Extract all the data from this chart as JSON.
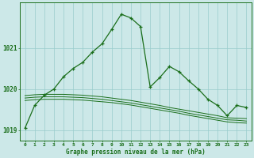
{
  "title": "Graphe pression niveau de la mer (hPa)",
  "background_color": "#cce8e8",
  "grid_color": "#99cccc",
  "line_color": "#1a6e1a",
  "xlim": [
    -0.5,
    23.5
  ],
  "ylim": [
    1018.75,
    1022.1
  ],
  "yticks": [
    1019,
    1020,
    1021
  ],
  "xticks": [
    0,
    1,
    2,
    3,
    4,
    5,
    6,
    7,
    8,
    9,
    10,
    11,
    12,
    13,
    14,
    15,
    16,
    17,
    18,
    19,
    20,
    21,
    22,
    23
  ],
  "main_x": [
    0,
    1,
    2,
    3,
    4,
    5,
    6,
    7,
    8,
    9,
    10,
    11,
    12,
    13,
    14,
    15,
    16,
    17,
    18,
    19,
    20,
    21,
    22,
    23
  ],
  "main_y": [
    1019.05,
    1019.6,
    1019.85,
    1020.0,
    1020.3,
    1020.5,
    1020.65,
    1020.9,
    1021.1,
    1021.45,
    1021.82,
    1021.73,
    1021.52,
    1020.05,
    1020.28,
    1020.55,
    1020.42,
    1020.2,
    1020.0,
    1019.75,
    1019.6,
    1019.35,
    1019.6,
    1019.55
  ],
  "line2_x": [
    0,
    1,
    2,
    3,
    4,
    5,
    6,
    7,
    8,
    9,
    10,
    11,
    12,
    13,
    14,
    15,
    16,
    17,
    18,
    19,
    20,
    21,
    22,
    23
  ],
  "line2_y": [
    1019.72,
    1019.74,
    1019.75,
    1019.75,
    1019.75,
    1019.74,
    1019.73,
    1019.71,
    1019.69,
    1019.67,
    1019.64,
    1019.61,
    1019.57,
    1019.53,
    1019.49,
    1019.45,
    1019.41,
    1019.36,
    1019.32,
    1019.28,
    1019.24,
    1019.2,
    1019.18,
    1019.17
  ],
  "line3_x": [
    0,
    1,
    2,
    3,
    4,
    5,
    6,
    7,
    8,
    9,
    10,
    11,
    12,
    13,
    14,
    15,
    16,
    17,
    18,
    19,
    20,
    21,
    22,
    23
  ],
  "line3_y": [
    1019.78,
    1019.8,
    1019.81,
    1019.81,
    1019.81,
    1019.8,
    1019.79,
    1019.77,
    1019.75,
    1019.72,
    1019.69,
    1019.66,
    1019.62,
    1019.58,
    1019.54,
    1019.5,
    1019.46,
    1019.41,
    1019.37,
    1019.33,
    1019.29,
    1019.25,
    1019.24,
    1019.22
  ],
  "line4_x": [
    0,
    1,
    2,
    3,
    4,
    5,
    6,
    7,
    8,
    9,
    10,
    11,
    12,
    13,
    14,
    15,
    16,
    17,
    18,
    19,
    20,
    21,
    22,
    23
  ],
  "line4_y": [
    1019.84,
    1019.86,
    1019.87,
    1019.87,
    1019.87,
    1019.86,
    1019.85,
    1019.83,
    1019.81,
    1019.78,
    1019.75,
    1019.72,
    1019.68,
    1019.64,
    1019.6,
    1019.55,
    1019.51,
    1019.47,
    1019.43,
    1019.39,
    1019.35,
    1019.3,
    1019.29,
    1019.28
  ]
}
